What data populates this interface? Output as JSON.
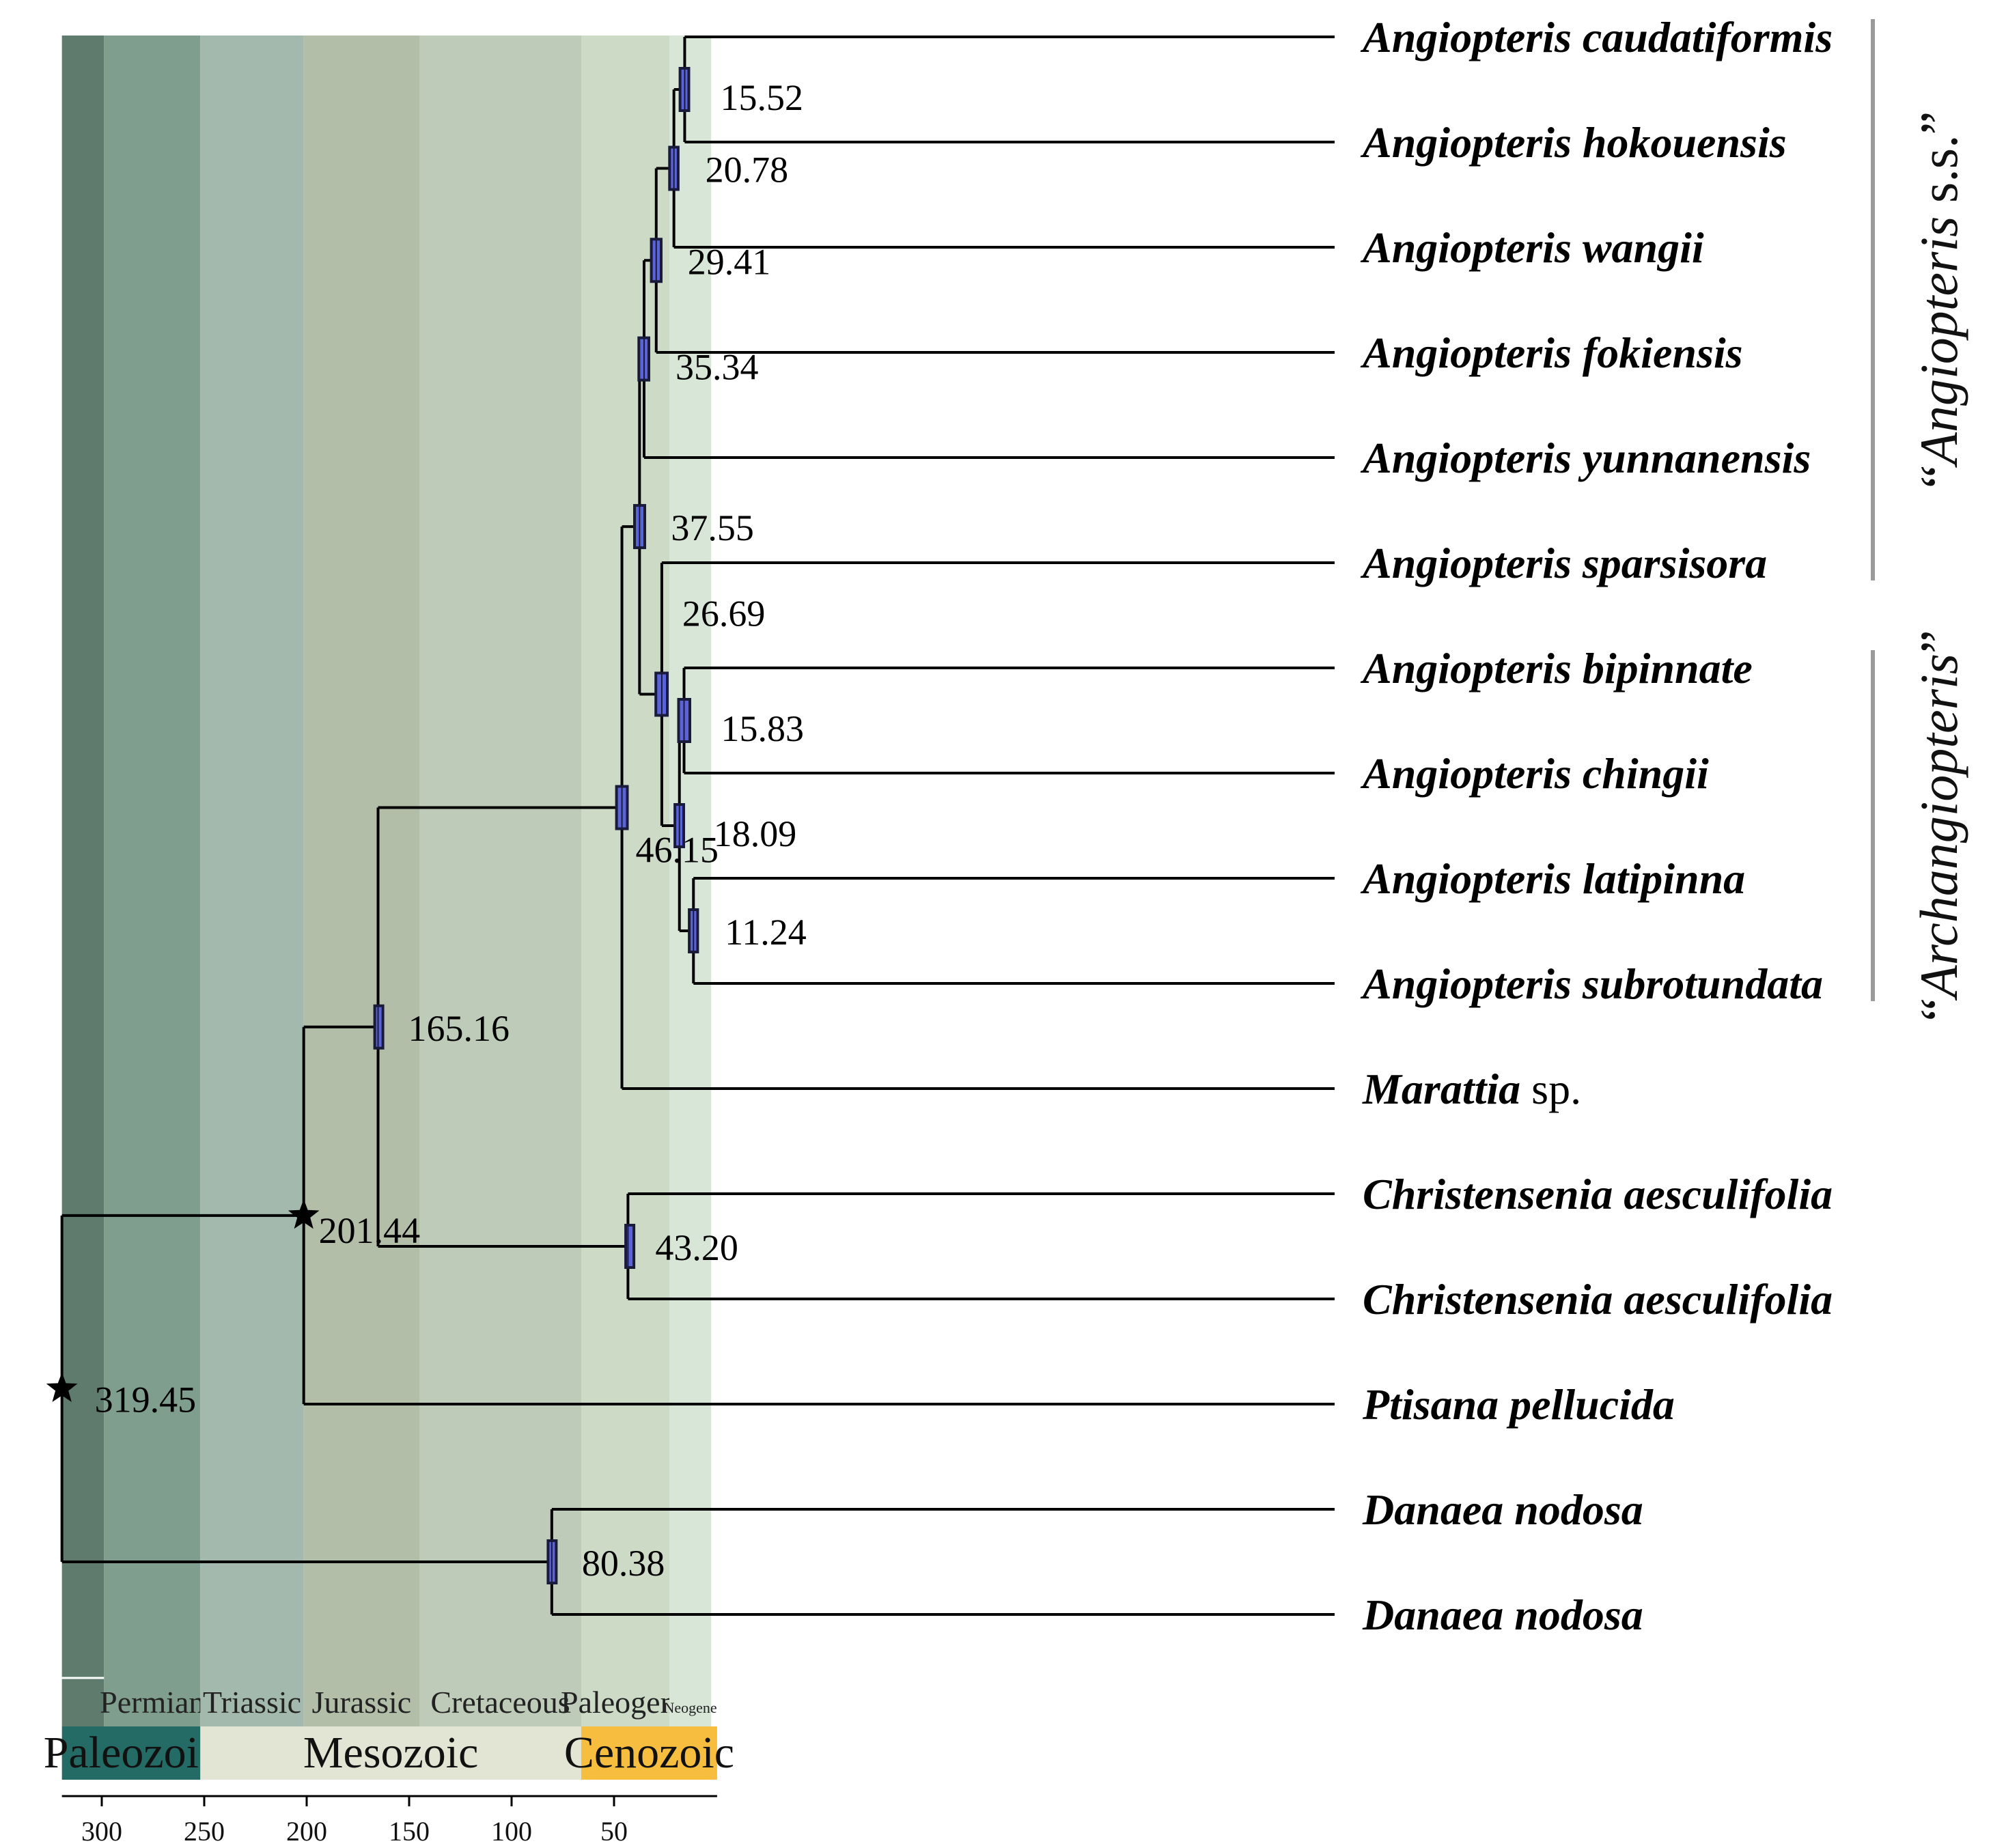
{
  "periods": [
    {
      "name": "",
      "start": 319.45,
      "end": 298.9,
      "color": "#5e7b6e"
    },
    {
      "name": "Permian",
      "start": 298.9,
      "end": 251.9,
      "color": "#7f9e8d"
    },
    {
      "name": "Triassic",
      "start": 251.9,
      "end": 201.4,
      "color": "#a3b9ae"
    },
    {
      "name": "Jurassic",
      "start": 201.4,
      "end": 145.0,
      "color": "#b2bea8"
    },
    {
      "name": "Cretaceous",
      "start": 145.0,
      "end": 66.0,
      "color": "#bfcbb9"
    },
    {
      "name": "Paleogene",
      "start": 66.0,
      "end": 23.0,
      "color": "#ccdac6"
    },
    {
      "name": "Neogene",
      "start": 23.0,
      "end": 2.6,
      "color": "#d8e6d8"
    }
  ],
  "eras": [
    {
      "name": "Paleozoic",
      "start": 319.45,
      "end": 251.9,
      "color": "#236b64"
    },
    {
      "name": "Mesozoic",
      "start": 251.9,
      "end": 66.0,
      "color": "#e2e4d4"
    },
    {
      "name": "Cenozoic",
      "start": 66.0,
      "end": -0.3,
      "color": "#f7bd3e"
    }
  ],
  "axis": {
    "ticks": [
      300,
      250,
      200,
      150,
      100,
      50
    ]
  },
  "taxa": [
    {
      "genus": "Angiopteris",
      "epithet": "caudatiformis"
    },
    {
      "genus": "Angiopteris",
      "epithet": "hokouensis"
    },
    {
      "genus": "Angiopteris",
      "epithet": "wangii"
    },
    {
      "genus": "Angiopteris",
      "epithet": "fokiensis"
    },
    {
      "genus": "Angiopteris",
      "epithet": "yunnanensis"
    },
    {
      "genus": "Angiopteris",
      "epithet": "sparsisora"
    },
    {
      "genus": "Angiopteris",
      "epithet": "bipinnate"
    },
    {
      "genus": "Angiopteris",
      "epithet": "chingii"
    },
    {
      "genus": "Angiopteris",
      "epithet": "latipinna"
    },
    {
      "genus": "Angiopteris",
      "epithet": "subrotundata"
    },
    {
      "genus": "Marattia",
      "epithet": "sp.",
      "epithet_plain": true
    },
    {
      "genus": "Christensenia",
      "epithet": "aesculifolia"
    },
    {
      "genus": "Christensenia",
      "epithet": "aesculifolia"
    },
    {
      "genus": "Ptisana",
      "epithet": "pellucida"
    },
    {
      "genus": "Danaea",
      "epithet": "nodosa"
    },
    {
      "genus": "Danaea",
      "epithet": "nodosa"
    }
  ],
  "nodes": [
    {
      "id": "n1",
      "age": 15.52,
      "label": "15.52",
      "hpd": [
        13.5,
        17.8
      ],
      "children": [
        0,
        1
      ],
      "calibrated": false
    },
    {
      "id": "n2",
      "age": 20.78,
      "label": "20.78",
      "hpd": [
        18.7,
        22.9
      ],
      "children": [
        "n1",
        2
      ],
      "calibrated": false
    },
    {
      "id": "n3",
      "age": 29.41,
      "label": "29.41",
      "hpd": [
        27.0,
        31.8
      ],
      "children": [
        "n2",
        3
      ],
      "calibrated": false
    },
    {
      "id": "n4",
      "age": 35.34,
      "label": "35.34",
      "hpd": [
        33.0,
        37.9
      ],
      "children": [
        "n3",
        4
      ],
      "calibrated": false
    },
    {
      "id": "n6",
      "age": 15.83,
      "label": "15.83",
      "hpd": [
        13.0,
        18.5
      ],
      "children": [
        6,
        7
      ],
      "calibrated": false
    },
    {
      "id": "n7",
      "age": 11.24,
      "label": "11.24",
      "hpd": [
        9.2,
        13.3
      ],
      "children": [
        8,
        9
      ],
      "calibrated": false
    },
    {
      "id": "n8",
      "age": 18.09,
      "label": "18.09",
      "hpd": [
        16.0,
        20.3
      ],
      "children": [
        "n6",
        "n7"
      ],
      "calibrated": false
    },
    {
      "id": "n5",
      "age": 26.69,
      "label": "26.69",
      "hpd": [
        24.0,
        29.6
      ],
      "children": [
        5,
        "n8"
      ],
      "calibrated": false
    },
    {
      "id": "n9",
      "age": 37.55,
      "label": "37.55",
      "hpd": [
        35.0,
        40.0
      ],
      "children": [
        "n4",
        "n5"
      ],
      "calibrated": false
    },
    {
      "id": "n10",
      "age": 46.15,
      "label": "46.15",
      "hpd": [
        43.5,
        48.8
      ],
      "children": [
        "n9",
        10
      ],
      "calibrated": false
    },
    {
      "id": "n11",
      "age": 43.2,
      "label": "43.20",
      "hpd": [
        42.2,
        44.3
      ],
      "children": [
        11,
        12
      ],
      "calibrated": false
    },
    {
      "id": "n12",
      "age": 165.16,
      "label": "165.16",
      "hpd": [
        163.5,
        166.8
      ],
      "children": [
        "n10",
        "n11"
      ],
      "calibrated": false
    },
    {
      "id": "n13",
      "age": 201.44,
      "label": "201.44",
      "hpd": null,
      "children": [
        "n12",
        13
      ],
      "calibrated": true
    },
    {
      "id": "n14",
      "age": 80.38,
      "label": "80.38",
      "hpd": [
        78.5,
        82.2
      ],
      "children": [
        14,
        15
      ],
      "calibrated": false
    },
    {
      "id": "n15",
      "age": 319.45,
      "label": "319.45",
      "hpd": null,
      "children": [
        "n13",
        "n14"
      ],
      "calibrated": true
    }
  ],
  "clades": [
    {
      "label_quoted": "“Angiopteris s.s.”",
      "genus": "Angiopteris",
      "suffix": " s.s.",
      "first_taxon": 0,
      "last_taxon": 5
    },
    {
      "label_quoted": "“Archangiopteris”",
      "genus": "Archangiopteris",
      "suffix": "",
      "first_taxon": 6,
      "last_taxon": 9
    }
  ]
}
